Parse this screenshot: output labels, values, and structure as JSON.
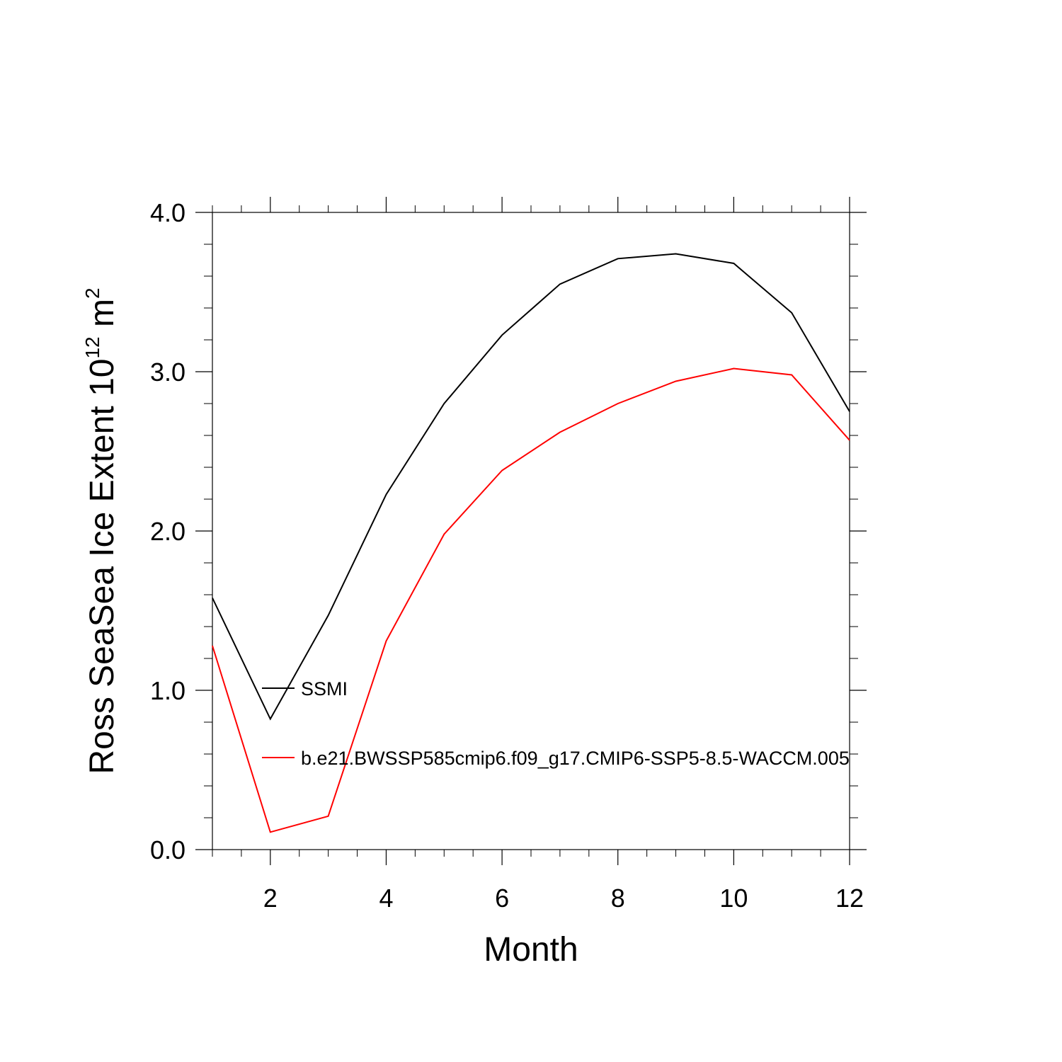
{
  "chart_data": {
    "type": "line",
    "title": "",
    "xlabel": "Month",
    "ylabel": "Ross SeaSea Ice Extent 10",
    "ylabel_exponent": "12",
    "ylabel_unit": "m",
    "ylabel_unit_exponent": "2",
    "xlim": [
      1,
      12
    ],
    "ylim": [
      0,
      4
    ],
    "x_ticks": [
      2,
      4,
      6,
      8,
      10,
      12
    ],
    "x_tick_labels": [
      "2",
      "4",
      "6",
      "8",
      "10",
      "12"
    ],
    "y_ticks": [
      0,
      1,
      2,
      3,
      4
    ],
    "y_tick_labels": [
      "0.0",
      "1.0",
      "2.0",
      "3.0",
      "4.0"
    ],
    "grid": false,
    "legend_position": "inside lower-left",
    "x": [
      1,
      2,
      3,
      4,
      5,
      6,
      7,
      8,
      9,
      10,
      11,
      12
    ],
    "series": [
      {
        "name": "SSMI",
        "color": "#000000",
        "values": [
          1.58,
          0.82,
          1.47,
          2.23,
          2.8,
          3.23,
          3.55,
          3.71,
          3.74,
          3.68,
          3.37,
          2.75
        ]
      },
      {
        "name": "b.e21.BWSSP585cmip6.f09_g17.CMIP6-SSP5-8.5-WACCM.005",
        "color": "#ff0000",
        "values": [
          1.28,
          0.11,
          0.21,
          1.31,
          1.98,
          2.38,
          2.62,
          2.8,
          2.94,
          3.02,
          2.98,
          2.57
        ]
      }
    ]
  }
}
